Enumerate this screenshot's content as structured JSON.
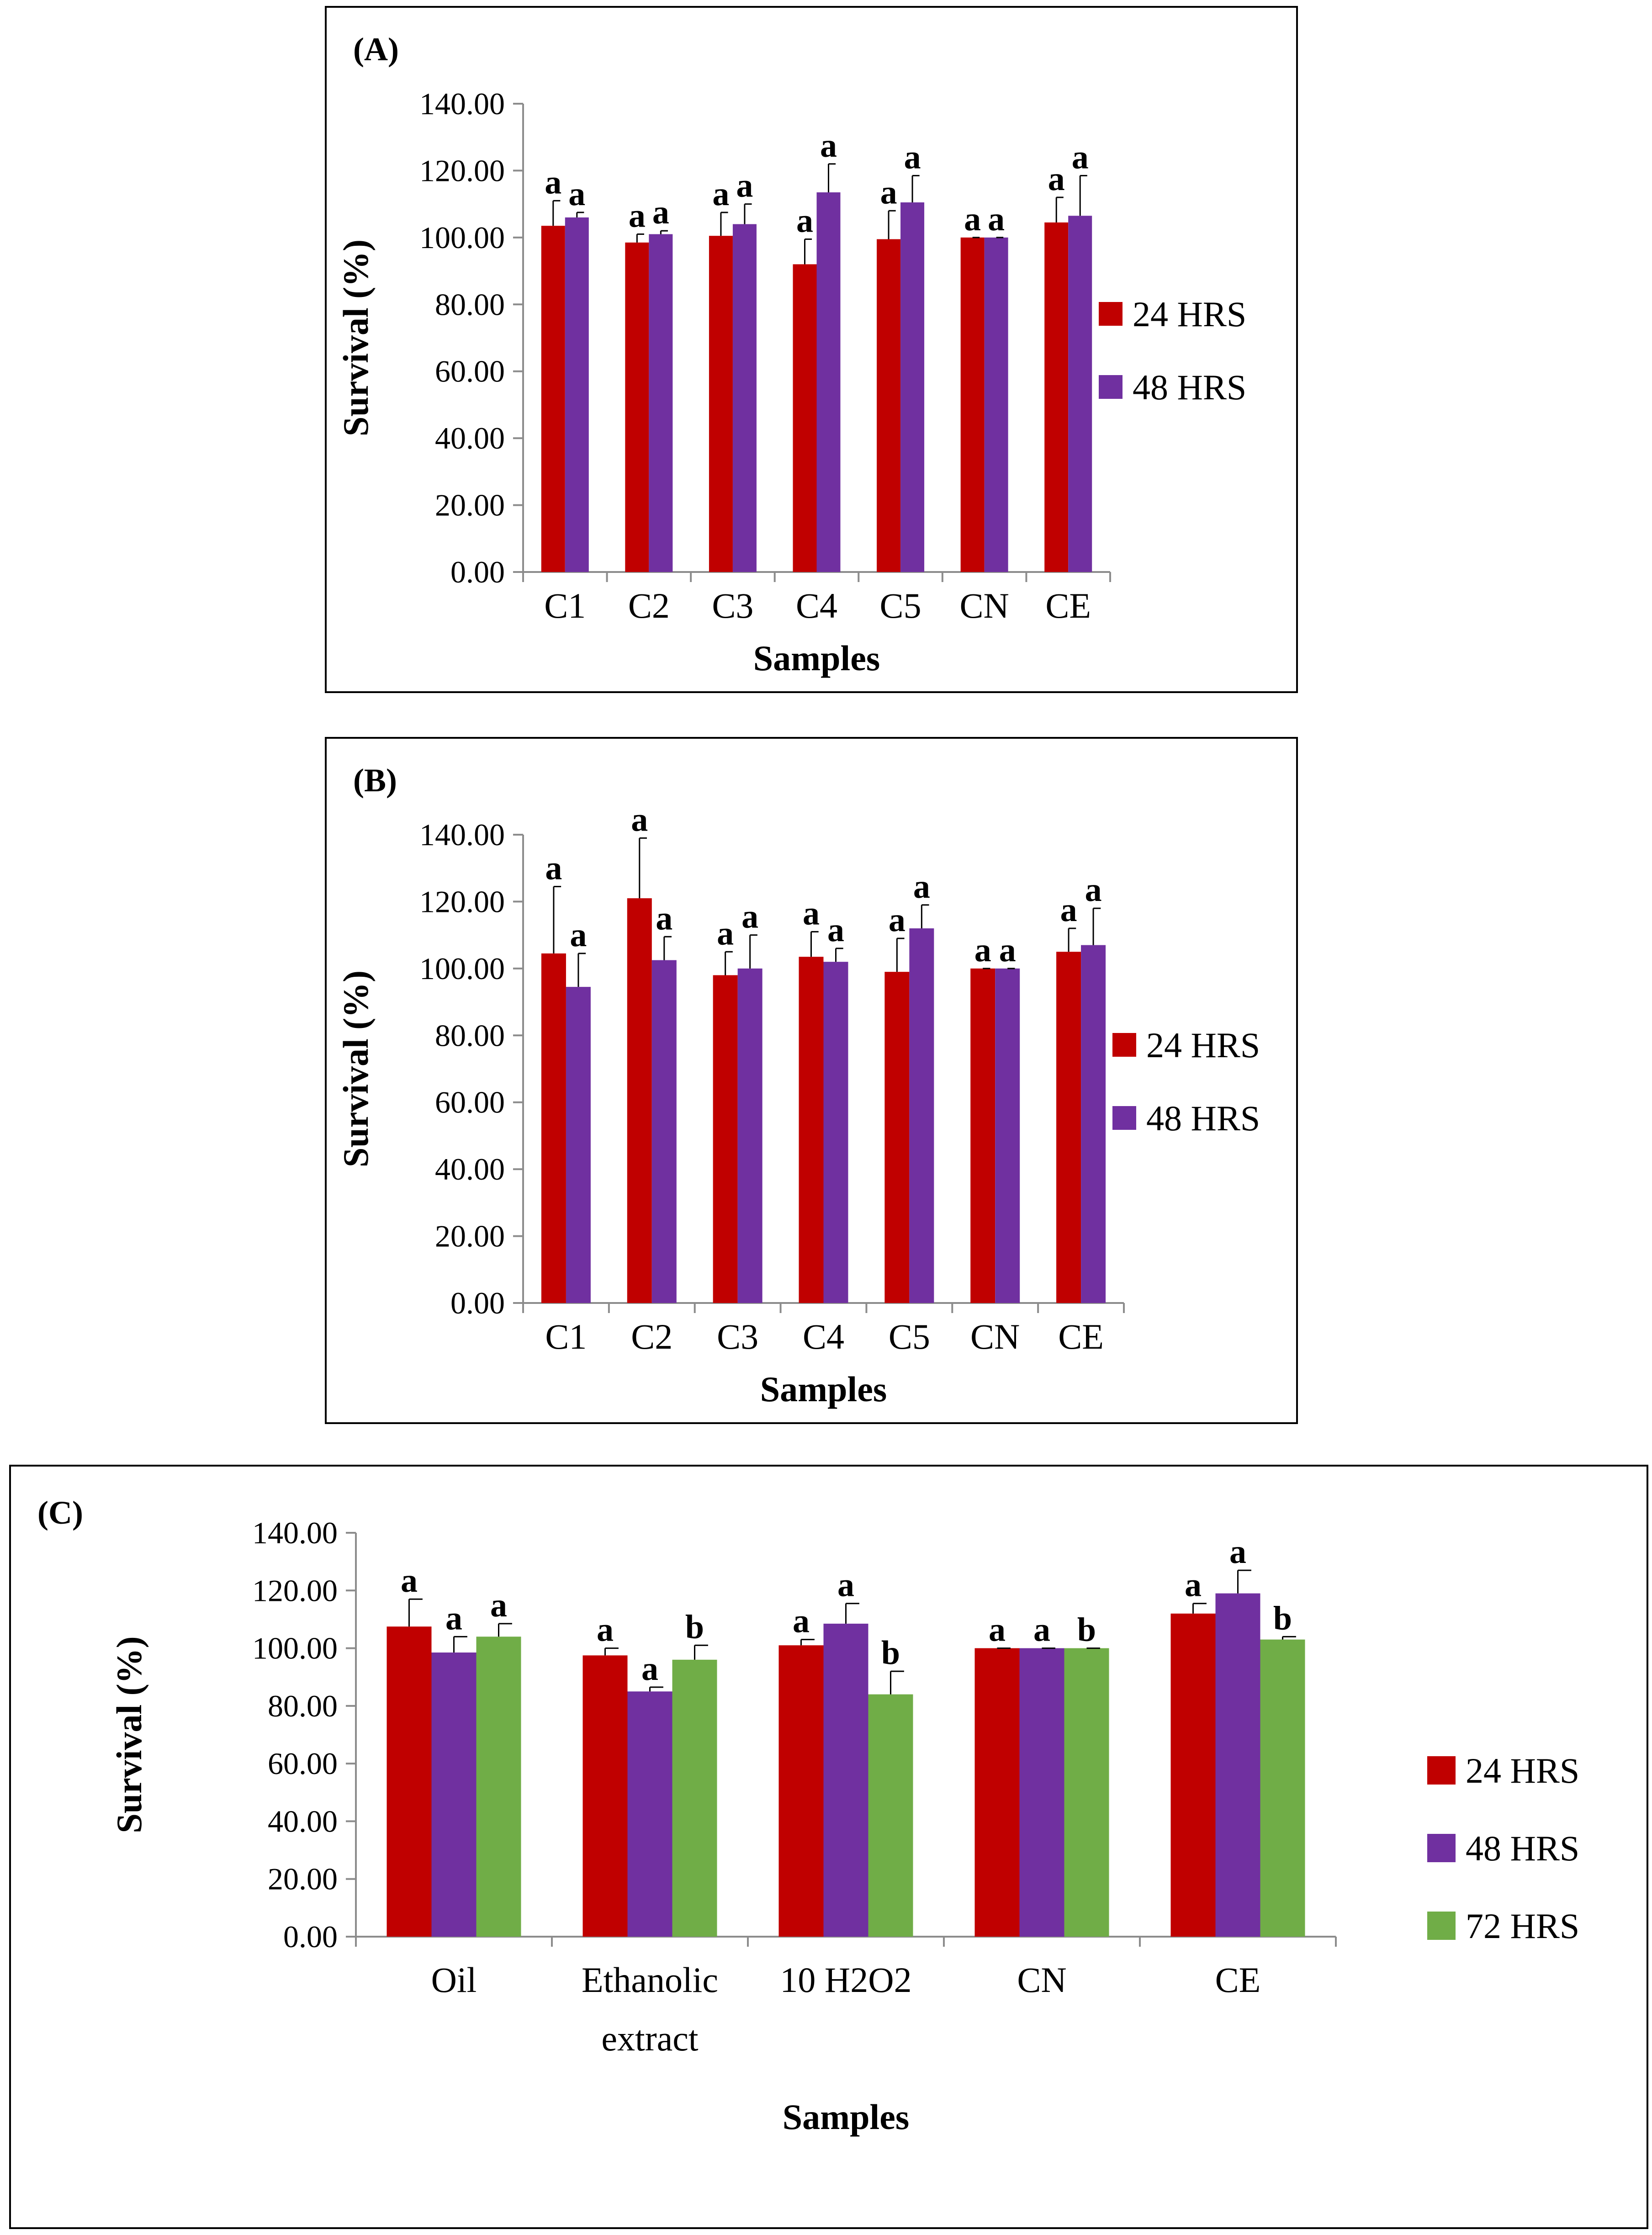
{
  "colors": {
    "24h": "#c00000",
    "48h": "#7030a0",
    "72h": "#70ad47"
  },
  "chart_data": [
    {
      "panel_label": "(A)",
      "type": "bar",
      "title": "",
      "xlabel": "Samples",
      "ylabel": "Survival (%)",
      "ylim": [
        0,
        140
      ],
      "yticks": [
        "0.00",
        "20.00",
        "40.00",
        "60.00",
        "80.00",
        "100.00",
        "120.00",
        "140.00"
      ],
      "categories": [
        "C1",
        "C2",
        "C3",
        "C4",
        "C5",
        "CN",
        "CE"
      ],
      "series": [
        {
          "name": "24 HRS",
          "color_key": "24h",
          "values": [
            103.5,
            98.5,
            100.5,
            92.0,
            99.5,
            100.0,
            104.5
          ],
          "errors": [
            7.5,
            2.5,
            7.0,
            7.5,
            8.5,
            0.0,
            7.5
          ],
          "labels": [
            "a",
            "a",
            "a",
            "a",
            "a",
            "a",
            "a"
          ]
        },
        {
          "name": "48 HRS",
          "color_key": "48h",
          "values": [
            106.0,
            101.0,
            104.0,
            113.5,
            110.5,
            100.0,
            106.5
          ],
          "errors": [
            1.5,
            1.0,
            6.0,
            8.5,
            8.0,
            0.0,
            12.0
          ],
          "labels": [
            "a",
            "a",
            "a",
            "a",
            "a",
            "a",
            "a"
          ]
        }
      ],
      "legend": [
        "24 HRS",
        "48 HRS"
      ]
    },
    {
      "panel_label": "(B)",
      "type": "bar",
      "title": "",
      "xlabel": "Samples",
      "ylabel": "Survival (%)",
      "ylim": [
        0,
        140
      ],
      "yticks": [
        "0.00",
        "20.00",
        "40.00",
        "60.00",
        "80.00",
        "100.00",
        "120.00",
        "140.00"
      ],
      "categories": [
        "C1",
        "C2",
        "C3",
        "C4",
        "C5",
        "CN",
        "CE"
      ],
      "series": [
        {
          "name": "24 HRS",
          "color_key": "24h",
          "values": [
            104.5,
            121.0,
            98.0,
            103.5,
            99.0,
            100.0,
            105.0
          ],
          "errors": [
            20.0,
            18.0,
            7.0,
            7.5,
            10.0,
            0.0,
            7.0
          ],
          "labels": [
            "a",
            "a",
            "a",
            "a",
            "a",
            "a",
            "a"
          ]
        },
        {
          "name": "48 HRS",
          "color_key": "48h",
          "values": [
            94.5,
            102.5,
            100.0,
            102.0,
            112.0,
            100.0,
            107.0
          ],
          "errors": [
            10.0,
            7.0,
            10.0,
            4.0,
            7.0,
            0.0,
            11.0
          ],
          "labels": [
            "a",
            "a",
            "a",
            "a",
            "a",
            "a",
            "a"
          ]
        }
      ],
      "legend": [
        "24 HRS",
        "48 HRS"
      ]
    },
    {
      "panel_label": "(C)",
      "type": "bar",
      "title": "",
      "xlabel": "Samples",
      "ylabel": "Survival (%)",
      "ylim": [
        0,
        140
      ],
      "yticks": [
        "0.00",
        "20.00",
        "40.00",
        "60.00",
        "80.00",
        "100.00",
        "120.00",
        "140.00"
      ],
      "categories": [
        [
          "Oil"
        ],
        [
          "Ethanolic",
          "extract"
        ],
        [
          "10 H2O2"
        ],
        [
          "CN"
        ],
        [
          "CE"
        ]
      ],
      "series": [
        {
          "name": "24 HRS",
          "color_key": "24h",
          "values": [
            107.5,
            97.5,
            101.0,
            100.0,
            112.0
          ],
          "errors": [
            9.5,
            2.5,
            2.0,
            0.0,
            3.5
          ],
          "labels": [
            "a",
            "a",
            "a",
            "a",
            "a"
          ]
        },
        {
          "name": "48 HRS",
          "color_key": "48h",
          "values": [
            98.5,
            85.0,
            108.5,
            100.0,
            119.0
          ],
          "errors": [
            5.5,
            1.5,
            7.0,
            0.0,
            8.0
          ],
          "labels": [
            "a",
            "a",
            "a",
            "a",
            "a"
          ]
        },
        {
          "name": "72 HRS",
          "color_key": "72h",
          "values": [
            104.0,
            96.0,
            84.0,
            100.0,
            103.0
          ],
          "errors": [
            4.5,
            5.0,
            8.0,
            0.0,
            1.0
          ],
          "labels": [
            "a",
            "b",
            "b",
            "b",
            "b"
          ]
        }
      ],
      "legend": [
        "24 HRS",
        "48 HRS",
        "72 HRS"
      ]
    }
  ]
}
